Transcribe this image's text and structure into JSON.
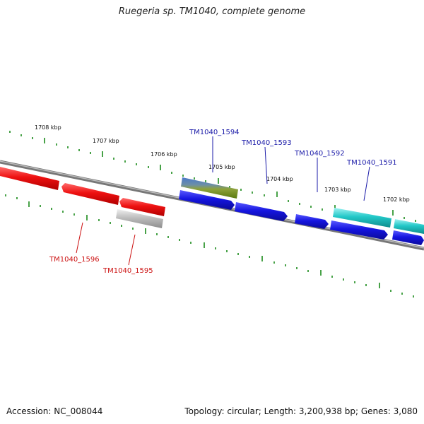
{
  "title": "Ruegeria sp. TM1040, complete genome",
  "footer": {
    "accession": "Accession: NC_008044",
    "summary": "Topology: circular; Length: 3,200,938 bp; Genes: 3,080"
  },
  "colors": {
    "backbone": "#8a8a8a",
    "tick": "#1a8a1a",
    "forward_label": "#1a1aa8",
    "reverse_label": "#cc1111",
    "red_gene": "#ee1111",
    "blue_gene": "#1515e0",
    "cyan_gene": "#22c8c8",
    "grey_gene": "#bdbdbd"
  },
  "tick_labels": [
    "1708 kbp",
    "1707 kbp",
    "1706 kbp",
    "1705 kbp",
    "1704 kbp",
    "1703 kbp",
    "1702 kbp"
  ],
  "gene_labels": {
    "forward": [
      "TM1040_1594",
      "TM1040_1593",
      "TM1040_1592",
      "TM1040_1591"
    ],
    "reverse": [
      "TM1040_1596",
      "TM1040_1595"
    ]
  }
}
